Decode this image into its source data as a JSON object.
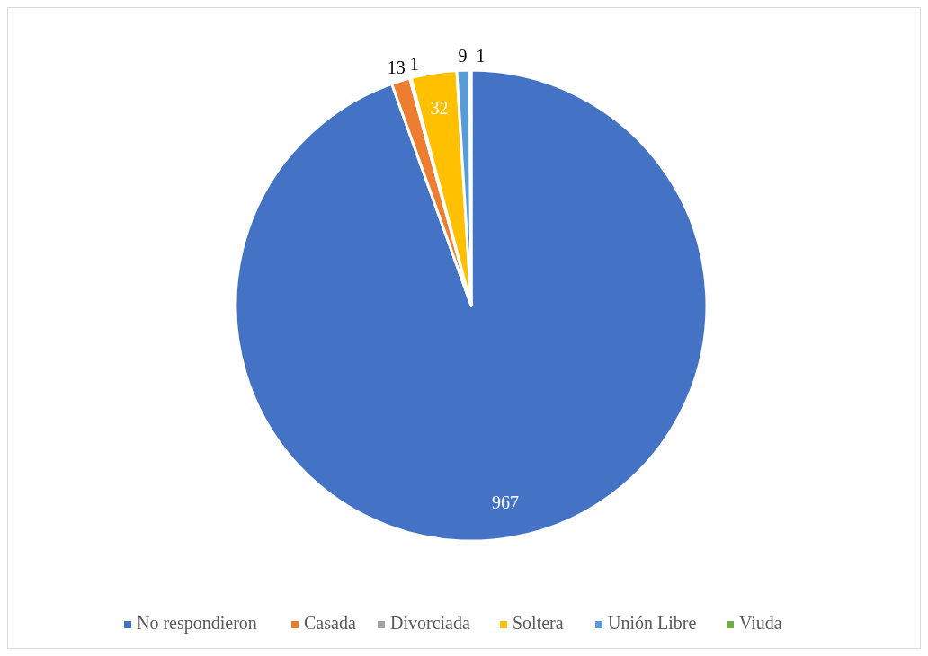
{
  "chart_data": {
    "type": "pie",
    "categories": [
      "No respondieron",
      "Casada",
      "Divorciada",
      "Soltera",
      "Unión Libre",
      "Viuda"
    ],
    "values": [
      967,
      13,
      1,
      32,
      9,
      1
    ],
    "colors": [
      "#4472c4",
      "#ed7d31",
      "#a5a5a5",
      "#ffc000",
      "#5b9bd5",
      "#70ad47"
    ],
    "data_labels": true,
    "legend": "bottom"
  }
}
